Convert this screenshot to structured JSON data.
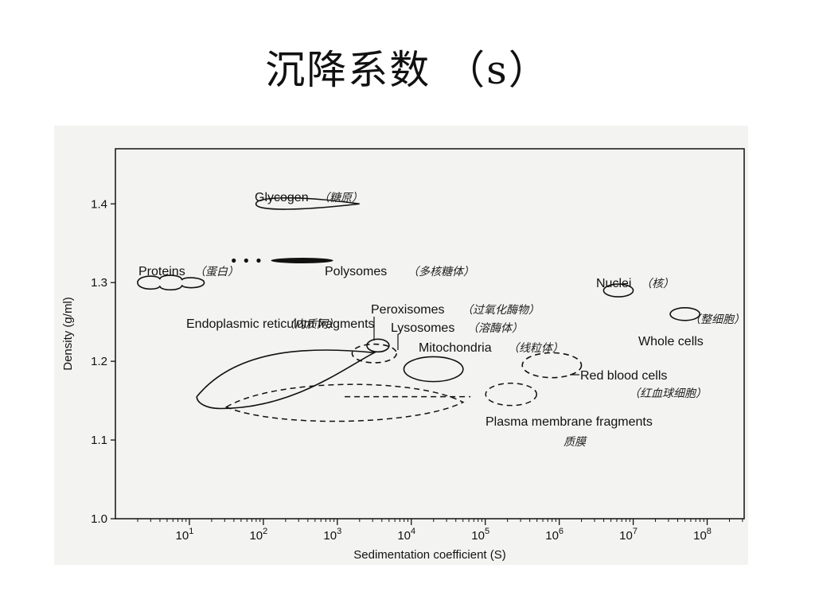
{
  "slide": {
    "title": "沉降系数 （s）"
  },
  "chart_data": {
    "type": "scatter",
    "xlabel": "Sedimentation coefficient (S)",
    "ylabel": "Density (g/ml)",
    "xscale": "log",
    "xlim_log10": [
      0,
      8.5
    ],
    "ylim": [
      1.0,
      1.47
    ],
    "yticks": [
      "1.0",
      "1.1",
      "1.2",
      "1.3",
      "1.4"
    ],
    "xticks": [
      {
        "base": "10",
        "exp": "1"
      },
      {
        "base": "10",
        "exp": "2"
      },
      {
        "base": "10",
        "exp": "3"
      },
      {
        "base": "10",
        "exp": "4"
      },
      {
        "base": "10",
        "exp": "5"
      },
      {
        "base": "10",
        "exp": "6"
      },
      {
        "base": "10",
        "exp": "7"
      },
      {
        "base": "10",
        "exp": "8"
      }
    ],
    "regions": [
      {
        "name": "Glycogen",
        "note": "（糖原）",
        "shape": "teardrop",
        "log10_s": [
          1.9,
          3.3
        ],
        "density": 1.4,
        "style": "solid"
      },
      {
        "name": "Proteins",
        "note": "（蛋白）",
        "shape": "blob",
        "log10_s": [
          0.3,
          1.2
        ],
        "density": 1.3,
        "style": "solid"
      },
      {
        "name": "Polysomes",
        "note": "（多核糖体）",
        "shape": "streak",
        "log10_s": [
          1.6,
          3.0
        ],
        "density": 1.328,
        "style": "solid"
      },
      {
        "name": "Nuclei",
        "note": "（核）",
        "shape": "ellipse",
        "log10_s": [
          6.6,
          7.0
        ],
        "density": 1.29,
        "style": "solid"
      },
      {
        "name": "Peroxisomes",
        "note": "（过氧化酶物）",
        "shape": "ellipse",
        "log10_s": [
          3.4,
          3.7
        ],
        "density": 1.22,
        "style": "solid"
      },
      {
        "name": "Lysosomes",
        "note": "（溶酶体）",
        "shape": "ellipse",
        "log10_s": [
          3.2,
          3.8
        ],
        "density": 1.21,
        "style": "dashed"
      },
      {
        "name": "Mitochondria",
        "note": "（线粒体）",
        "shape": "ellipse",
        "log10_s": [
          3.9,
          4.7
        ],
        "density": 1.19,
        "style": "solid"
      },
      {
        "name": "Whole cells",
        "note": "（整细胞）",
        "shape": "ellipse",
        "log10_s": [
          7.5,
          7.9
        ],
        "density": 1.26,
        "style": "solid"
      },
      {
        "name": "Red blood cells",
        "note": "（红血球细胞）",
        "shape": "ellipse",
        "log10_s": [
          5.5,
          6.3
        ],
        "density": 1.195,
        "style": "dashed"
      },
      {
        "name": "Endoplasmic reticulum fragments",
        "note": "（内质网）",
        "shape": "lens",
        "log10_s": [
          1.1,
          3.5
        ],
        "density": [
          1.14,
          1.215
        ],
        "style": "solid"
      },
      {
        "name": "Plasma membrane fragments",
        "note": "质膜",
        "shape": "lens",
        "log10_s": [
          1.5,
          4.7
        ],
        "density": [
          1.13,
          1.17
        ],
        "style": "dashed"
      }
    ]
  }
}
